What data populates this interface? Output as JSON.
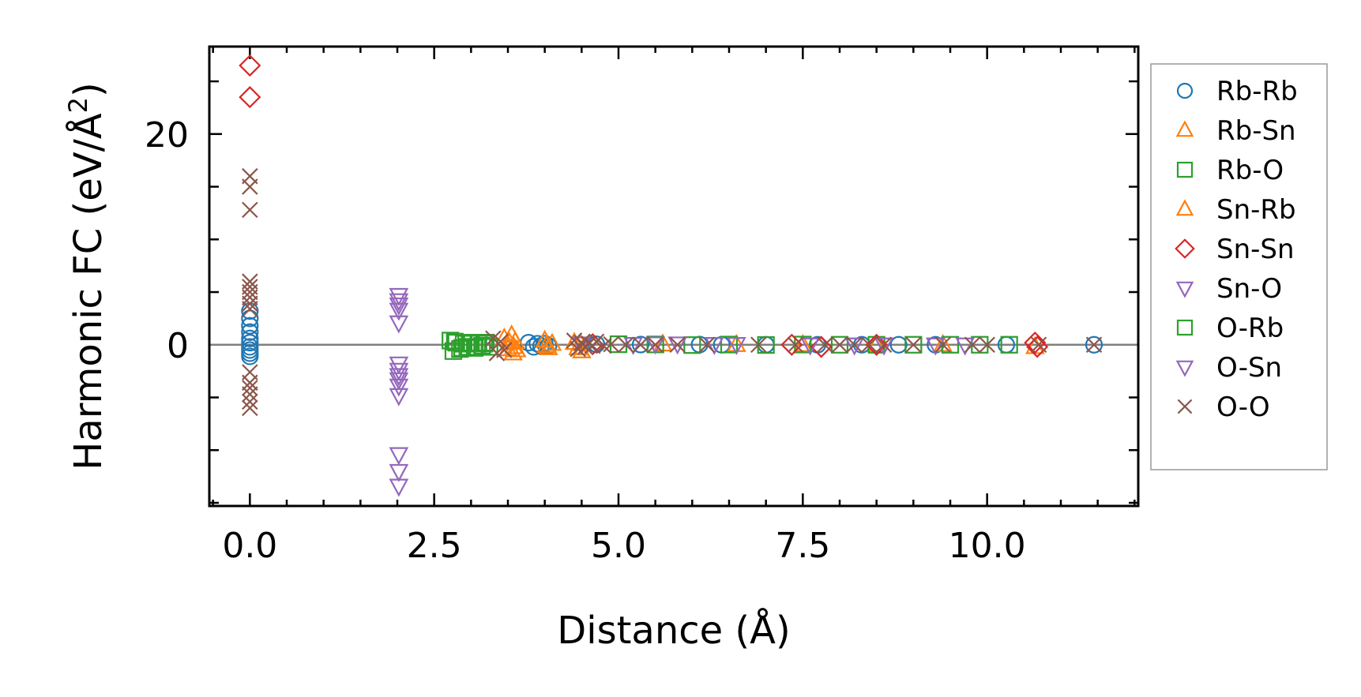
{
  "chart_data": {
    "type": "scatter",
    "title": "",
    "xlabel": "Distance (Å)",
    "ylabel": "Harmonic FC (eV/Å",
    "ylabel_superscript": "2",
    "ylabel_suffix": ")",
    "xlim": [
      -0.55,
      12.05
    ],
    "ylim": [
      -15.3,
      28.3
    ],
    "xticks": [
      0.0,
      2.5,
      5.0,
      7.5,
      10.0
    ],
    "xtick_labels": [
      "0.0",
      "2.5",
      "5.0",
      "7.5",
      "10.0"
    ],
    "yticks": [
      0,
      20
    ],
    "ytick_labels": [
      "0",
      "20"
    ],
    "zero_line": true,
    "grid": false,
    "legend_position": "right-outside",
    "series": [
      {
        "name": "Rb-Rb",
        "marker": "circle",
        "color": "#1f77b4",
        "x": [
          0,
          0,
          0,
          0,
          0,
          0,
          0,
          0,
          0,
          0,
          3.78,
          3.85,
          3.9,
          3.95,
          4.0,
          4.05,
          4.7,
          5.3,
          6.1,
          6.4,
          7.0,
          7.7,
          8.3,
          8.8,
          9.3,
          10.26,
          11.45
        ],
        "y": [
          3.2,
          2.5,
          1.8,
          1.2,
          0.6,
          0.2,
          -0.2,
          -0.5,
          -0.8,
          -1.1,
          0.2,
          -0.2,
          0.1,
          -0.1,
          0.1,
          -0.1,
          0.05,
          0.02,
          0.02,
          0,
          0,
          0,
          0,
          0,
          0,
          0,
          0
        ]
      },
      {
        "name": "Rb-Sn",
        "marker": "triangle-up",
        "color": "#ff7f0e",
        "x": [
          3.45,
          3.5,
          3.55,
          3.57,
          3.6,
          3.62,
          4.0,
          4.05,
          4.1,
          4.4,
          4.45,
          4.5,
          5.6,
          6.6,
          7.5,
          8.5,
          9.4,
          10.65
        ],
        "y": [
          0.6,
          -0.4,
          0.9,
          -0.8,
          0.3,
          -0.5,
          0.4,
          -0.3,
          0.1,
          0.2,
          -0.3,
          -0.6,
          0.05,
          0,
          0,
          0,
          0,
          -0.2
        ]
      },
      {
        "name": "Rb-O",
        "marker": "square",
        "color": "#2ca02c",
        "x": [
          2.72,
          2.76,
          2.8,
          2.85,
          2.9,
          2.95,
          3.0,
          3.05,
          3.1,
          3.15,
          3.2,
          3.25,
          5.0,
          5.5,
          6.0,
          6.5,
          7.0,
          7.5,
          8.0,
          8.5,
          9.0,
          9.5,
          9.9,
          10.3
        ],
        "y": [
          0.4,
          -0.6,
          0.2,
          -0.4,
          0.1,
          -0.2,
          0.2,
          -0.3,
          0.1,
          -0.1,
          0.2,
          -0.2,
          0.05,
          0.03,
          -0.03,
          0.02,
          -0.02,
          0.02,
          0,
          0,
          0,
          0,
          0,
          0
        ]
      },
      {
        "name": "Sn-Rb",
        "marker": "triangle-up",
        "color": "#ff7f0e",
        "x": [
          3.52,
          3.58,
          4.02,
          4.48
        ],
        "y": [
          0.2,
          -0.2,
          -0.1,
          0.1
        ]
      },
      {
        "name": "Sn-Sn",
        "marker": "diamond",
        "color": "#d62728",
        "x": [
          0,
          0,
          4.65,
          7.35,
          7.75,
          8.5,
          10.65,
          10.68
        ],
        "y": [
          26.5,
          23.5,
          0.05,
          0,
          -0.2,
          0,
          0.2,
          -0.2
        ]
      },
      {
        "name": "Sn-O",
        "marker": "triangle-down",
        "color": "#9467bd",
        "x": [
          2.02,
          2.02,
          2.02,
          2.02,
          2.02,
          2.02,
          2.02,
          2.02,
          2.02,
          2.02,
          2.02,
          2.02,
          4.5,
          5.5,
          5.8,
          6.6,
          7.6,
          8.6,
          9.3,
          9.7
        ],
        "y": [
          4.7,
          3.8,
          3.3,
          2.1,
          -1.8,
          -2.4,
          -3.3,
          -3.9,
          -4.8,
          -10.4,
          -12.0,
          -13.4,
          0.1,
          0.1,
          0.1,
          0.05,
          0,
          0,
          0,
          0
        ]
      },
      {
        "name": "O-Rb",
        "marker": "square",
        "color": "#2ca02c",
        "x": [
          2.78,
          2.88,
          2.98,
          3.08,
          3.18
        ],
        "y": [
          0.3,
          -0.3,
          0.2,
          -0.2,
          0.1
        ]
      },
      {
        "name": "O-Sn",
        "marker": "triangle-down",
        "color": "#9467bd",
        "x": [
          2.02,
          2.02,
          5.2,
          6.3,
          8.2
        ],
        "y": [
          4.2,
          -2.9,
          0.05,
          0.05,
          0
        ]
      },
      {
        "name": "O-O",
        "marker": "x",
        "color": "#8c564b",
        "x": [
          0,
          0,
          0,
          0,
          0,
          0,
          0,
          0,
          0,
          0,
          0,
          0,
          0,
          0,
          0,
          3.3,
          3.35,
          3.4,
          3.45,
          4.4,
          4.45,
          4.5,
          4.55,
          4.6,
          4.65,
          4.7,
          4.8,
          4.9,
          5.1,
          5.3,
          5.5,
          5.8,
          6.2,
          6.9,
          7.4,
          7.8,
          8.0,
          8.2,
          8.4,
          8.6,
          9.0,
          9.4,
          9.8,
          10.0,
          10.7,
          11.45
        ],
        "y": [
          16.0,
          15.0,
          12.8,
          6.0,
          5.5,
          5.0,
          4.5,
          3.9,
          3.4,
          -2.6,
          -3.6,
          -4.1,
          -4.7,
          -5.4,
          -6.0,
          0.6,
          -0.8,
          0.3,
          -0.5,
          0.4,
          -0.4,
          0.2,
          -0.2,
          0.1,
          -0.1,
          0.3,
          -0.1,
          0.05,
          0,
          0,
          0,
          0,
          0,
          0,
          0,
          0,
          0,
          0,
          0,
          0,
          0,
          0,
          0,
          0,
          0,
          0
        ]
      }
    ]
  }
}
